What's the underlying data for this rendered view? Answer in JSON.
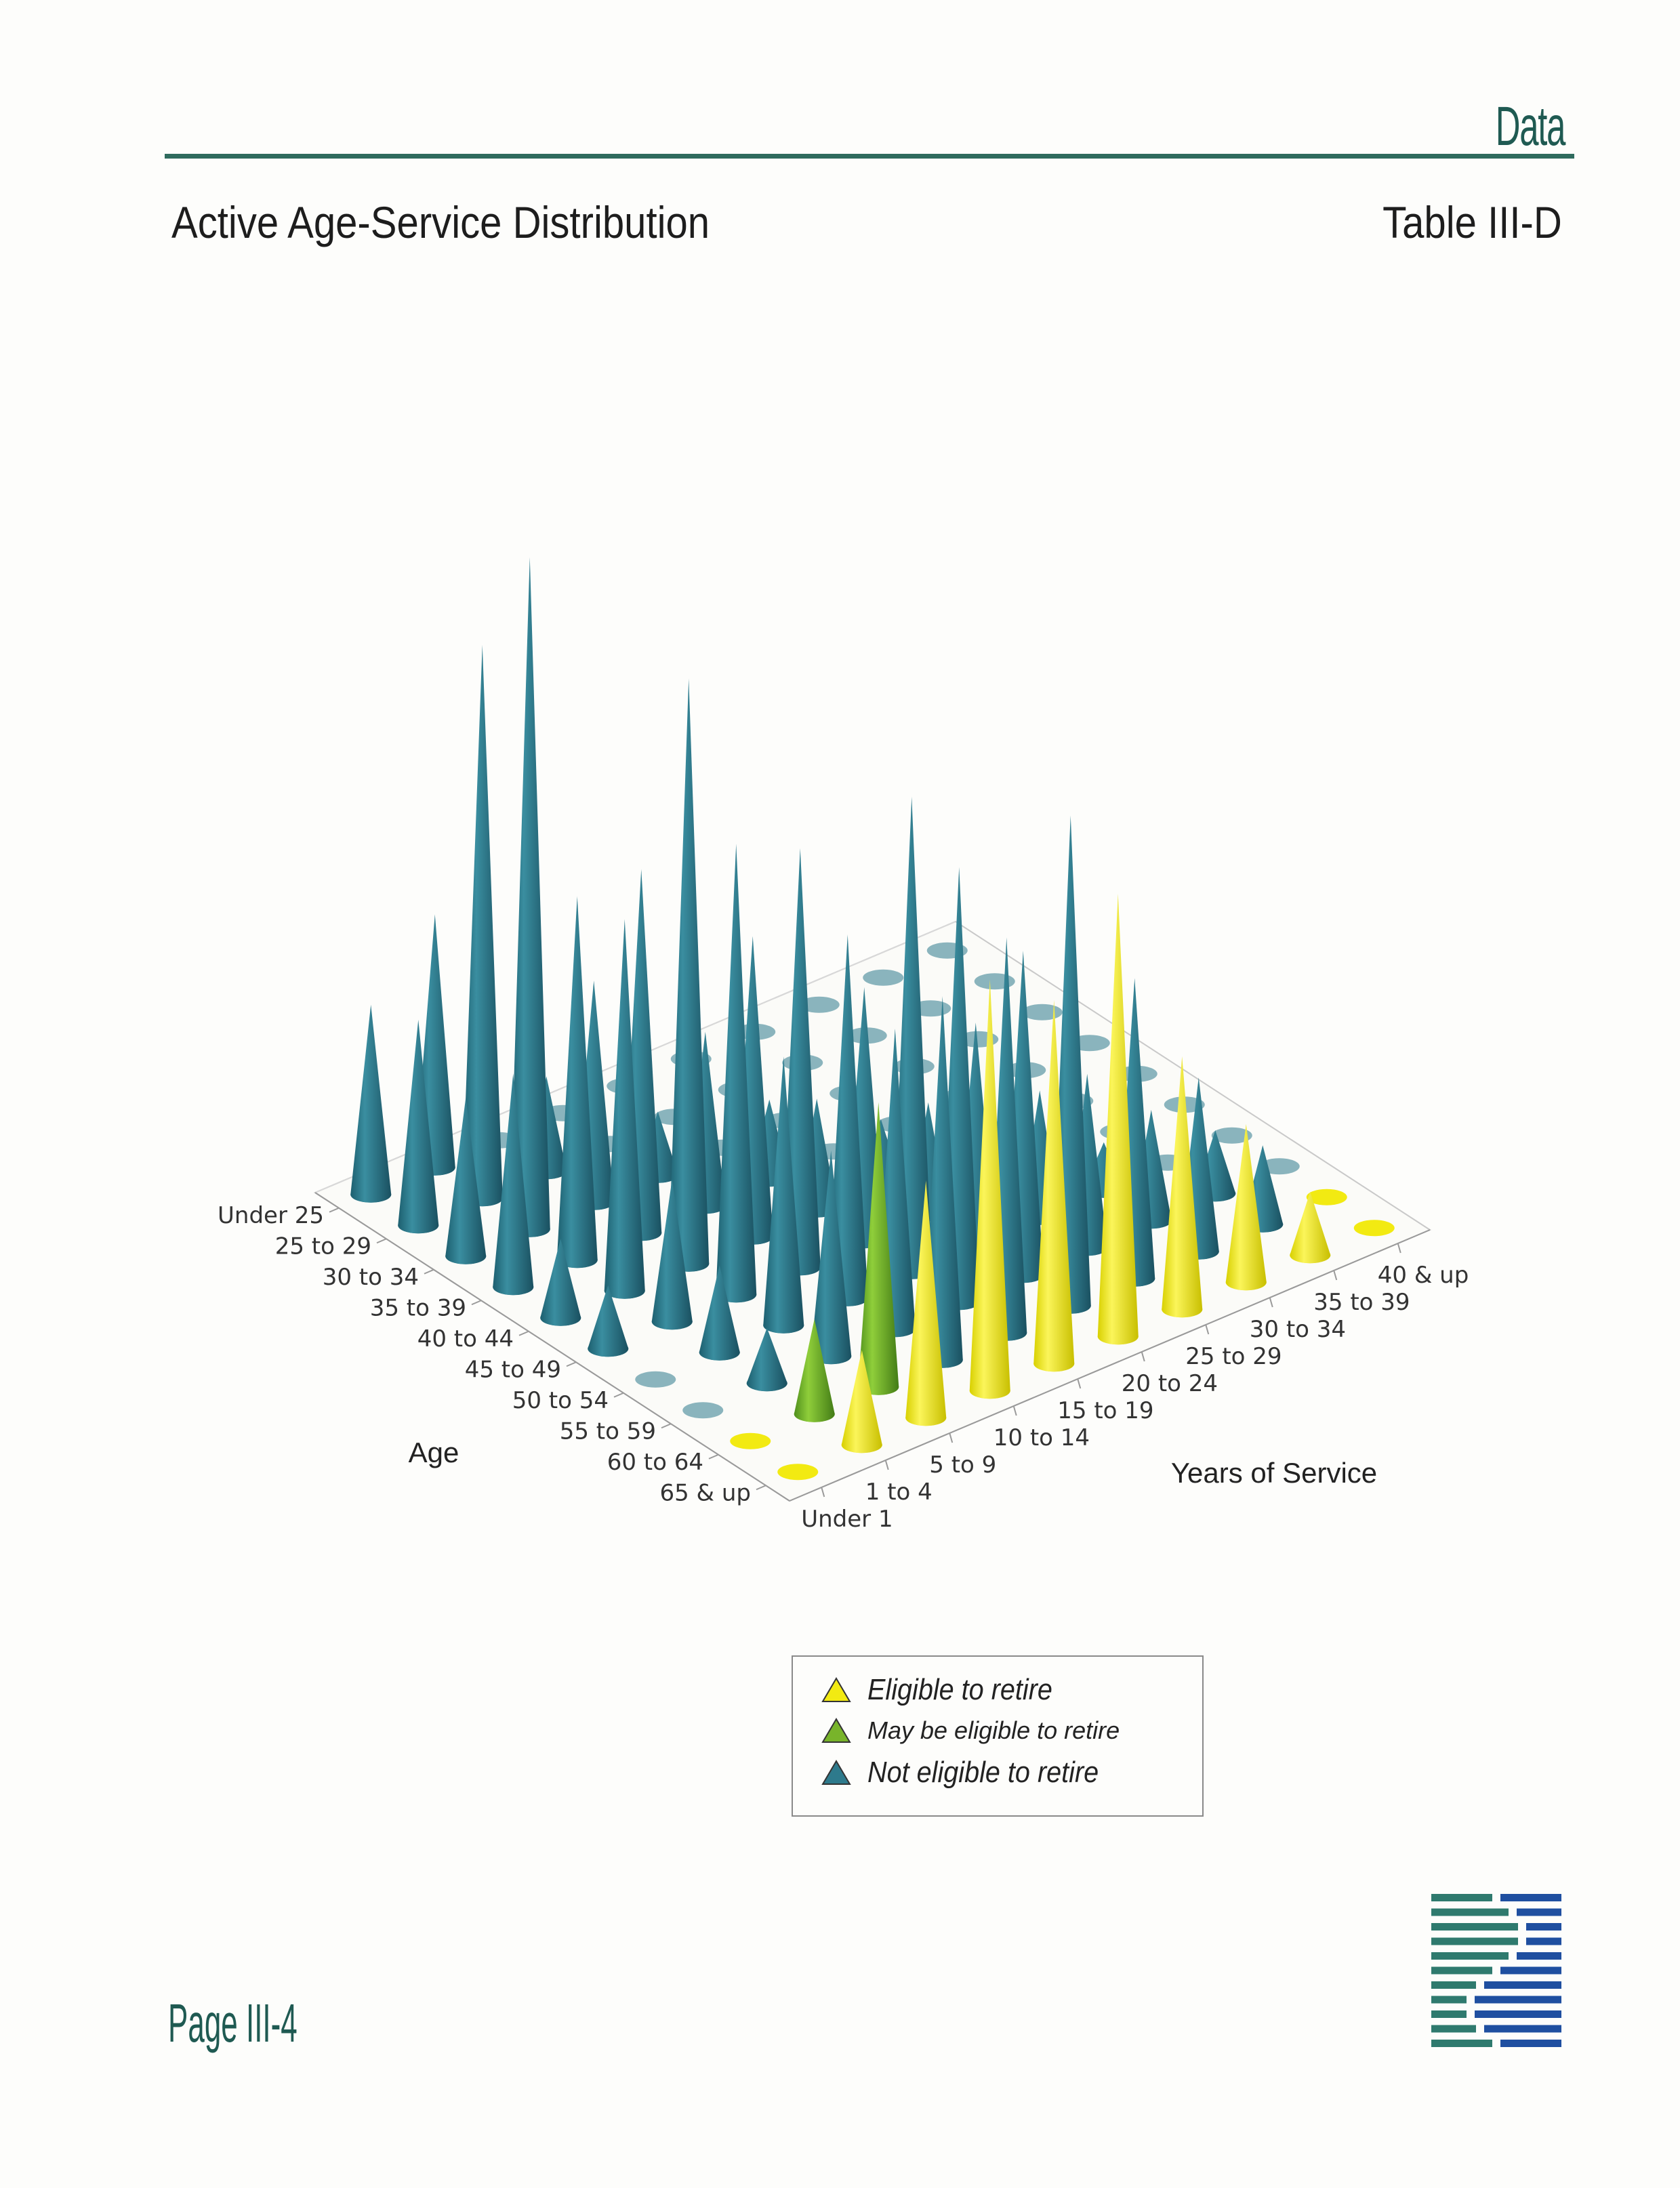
{
  "header": {
    "section_label": "Data",
    "title": "Active Age-Service Distribution",
    "table_id": "Table III-D"
  },
  "footer": {
    "page_number": "Page III-4"
  },
  "colors": {
    "eligible": "#f2ea12",
    "may_be_eligible": "#78b42a",
    "not_eligible": "#2e7a8c",
    "rule": "#2f6b5e",
    "logo_teal": "#2f7a6e",
    "logo_blue": "#1f4fa0"
  },
  "legend": [
    {
      "label": "Eligible to retire",
      "color": "#f2ea12"
    },
    {
      "label": "May be eligible to retire",
      "color": "#78b42a"
    },
    {
      "label": "Not eligible to retire",
      "color": "#2e7a8c"
    }
  ],
  "chart_data": {
    "type": "3d-cone",
    "title": "",
    "age_label": "Age",
    "service_label": "Years of Service",
    "age_groups": [
      "Under 25",
      "25 to 29",
      "30 to 34",
      "35 to 39",
      "40 to 44",
      "45 to 49",
      "50 to 54",
      "55 to 59",
      "60 to 64",
      "65 & up"
    ],
    "service_groups": [
      "Under 1",
      "1 to 4",
      "5 to 9",
      "10 to 14",
      "15 to 19",
      "20 to 24",
      "25 to 29",
      "30 to 34",
      "35 to 39",
      "40 & up"
    ],
    "grid": true,
    "legend_position": "bottom",
    "values": [
      [
        24,
        32,
        0,
        0,
        0,
        0,
        0,
        0,
        0,
        0
      ],
      [
        26,
        70,
        12,
        0,
        0,
        0,
        0,
        0,
        0,
        0
      ],
      [
        20,
        85,
        28,
        8,
        0,
        0,
        0,
        0,
        0,
        0
      ],
      [
        27,
        46,
        46,
        22,
        10,
        0,
        0,
        0,
        0,
        0
      ],
      [
        10,
        47,
        74,
        38,
        14,
        8,
        0,
        0,
        0,
        0
      ],
      [
        8,
        18,
        57,
        53,
        32,
        14,
        4,
        0,
        0,
        0
      ],
      [
        0,
        11,
        34,
        46,
        60,
        28,
        16,
        6,
        0,
        0
      ],
      [
        0,
        7,
        26,
        38,
        55,
        41,
        22,
        14,
        8,
        0
      ],
      [
        0,
        12,
        36,
        46,
        50,
        62,
        38,
        22,
        10,
        0
      ],
      [
        0,
        12,
        30,
        52,
        46,
        56,
        32,
        20,
        8,
        0
      ]
    ],
    "status": [
      [
        "N",
        "N",
        "N",
        "N",
        "N",
        "N",
        "N",
        "N",
        "N",
        "N"
      ],
      [
        "N",
        "N",
        "N",
        "N",
        "N",
        "N",
        "N",
        "N",
        "N",
        "N"
      ],
      [
        "N",
        "N",
        "N",
        "N",
        "N",
        "N",
        "N",
        "N",
        "N",
        "N"
      ],
      [
        "N",
        "N",
        "N",
        "N",
        "N",
        "N",
        "N",
        "N",
        "N",
        "N"
      ],
      [
        "N",
        "N",
        "N",
        "N",
        "N",
        "N",
        "N",
        "N",
        "N",
        "N"
      ],
      [
        "N",
        "N",
        "N",
        "N",
        "N",
        "N",
        "N",
        "N",
        "N",
        "N"
      ],
      [
        "N",
        "N",
        "N",
        "N",
        "N",
        "N",
        "N",
        "N",
        "N",
        "N"
      ],
      [
        "N",
        "N",
        "N",
        "N",
        "N",
        "N",
        "N",
        "N",
        "N",
        "N"
      ],
      [
        "E",
        "M",
        "M",
        "N",
        "N",
        "N",
        "N",
        "N",
        "N",
        "E"
      ],
      [
        "E",
        "E",
        "E",
        "E",
        "E",
        "E",
        "E",
        "E",
        "E",
        "E"
      ]
    ]
  }
}
